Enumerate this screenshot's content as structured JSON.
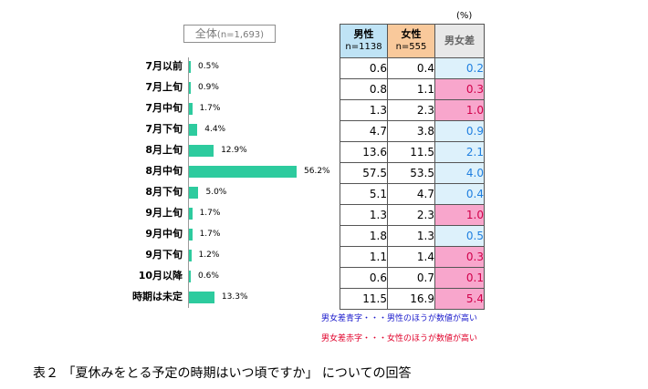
{
  "total_label": "全体",
  "total_n": "(n=1,693)",
  "unit": "(%)",
  "headers": {
    "male": "男性",
    "male_n": "n=1138",
    "female": "女性",
    "female_n": "n=555",
    "diff": "男女差"
  },
  "rows": [
    {
      "label": "7月以前",
      "pct": "0.5%",
      "male": "0.6",
      "female": "0.4",
      "diff": "0.2",
      "diff_color": "blue"
    },
    {
      "label": "7月上旬",
      "pct": "0.9%",
      "male": "0.8",
      "female": "1.1",
      "diff": "0.3",
      "diff_color": "red"
    },
    {
      "label": "7月中旬",
      "pct": "1.7%",
      "male": "1.3",
      "female": "2.3",
      "diff": "1.0",
      "diff_color": "red"
    },
    {
      "label": "7月下旬",
      "pct": "4.4%",
      "male": "4.7",
      "female": "3.8",
      "diff": "0.9",
      "diff_color": "blue"
    },
    {
      "label": "8月上旬",
      "pct": "12.9%",
      "male": "13.6",
      "female": "11.5",
      "diff": "2.1",
      "diff_color": "blue"
    },
    {
      "label": "8月中旬",
      "pct": "56.2%",
      "male": "57.5",
      "female": "53.5",
      "diff": "4.0",
      "diff_color": "blue"
    },
    {
      "label": "8月下旬",
      "pct": "5.0%",
      "male": "5.1",
      "female": "4.7",
      "diff": "0.4",
      "diff_color": "blue"
    },
    {
      "label": "9月上旬",
      "pct": "1.7%",
      "male": "1.3",
      "female": "2.3",
      "diff": "1.0",
      "diff_color": "red"
    },
    {
      "label": "9月中旬",
      "pct": "1.7%",
      "male": "1.8",
      "female": "1.3",
      "diff": "0.5",
      "diff_color": "blue"
    },
    {
      "label": "9月下旬",
      "pct": "1.2%",
      "male": "1.1",
      "female": "1.4",
      "diff": "0.3",
      "diff_color": "red"
    },
    {
      "label": "10月以降",
      "pct": "0.6%",
      "male": "0.6",
      "female": "0.7",
      "diff": "0.1",
      "diff_color": "red"
    },
    {
      "label": "時期は未定",
      "pct": "13.3%",
      "male": "11.5",
      "female": "16.9",
      "diff": "5.4",
      "diff_color": "red"
    }
  ],
  "notes": {
    "blue": "男女差青字・・・男性のほうが数値が高い",
    "red": "男女差赤字・・・女性のほうが数値が高い"
  },
  "caption": "表２ 「夏休みをとる予定の時期はいつ頃ですか」 についての回答",
  "colors": {
    "bar": "#2dcb9e",
    "male_header": "#bfe3f5",
    "female_header": "#f9c99b",
    "diff_blue": "#ddf1fb",
    "diff_pink": "#f8a6cc"
  },
  "chart_data": {
    "type": "bar",
    "orientation": "horizontal",
    "categories": [
      "7月以前",
      "7月上旬",
      "7月中旬",
      "7月下旬",
      "8月上旬",
      "8月中旬",
      "8月下旬",
      "9月上旬",
      "9月中旬",
      "9月下旬",
      "10月以降",
      "時期は未定"
    ],
    "values": [
      0.5,
      0.9,
      1.7,
      4.4,
      12.9,
      56.2,
      5.0,
      1.7,
      1.7,
      1.2,
      0.6,
      13.3
    ],
    "title": "全体(n=1,693)",
    "grid": false
  }
}
